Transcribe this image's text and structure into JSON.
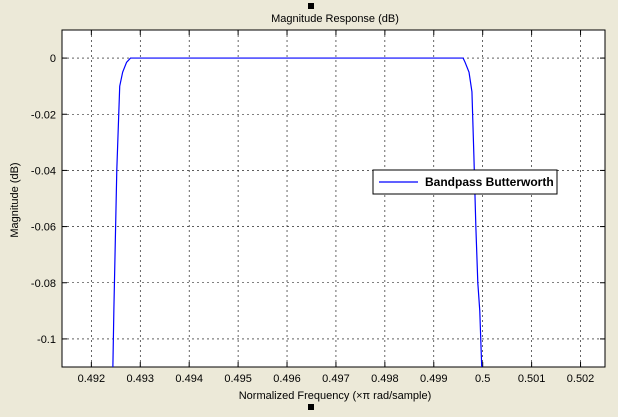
{
  "chart_data": {
    "type": "line",
    "title": "Magnitude Response (dB)",
    "xlabel": "Normalized Frequency (×π rad/sample)",
    "ylabel": "Magnitude (dB)",
    "xlim": [
      0.4914,
      0.5025
    ],
    "ylim": [
      -0.11,
      0.01
    ],
    "xticks": [
      0.492,
      0.493,
      0.494,
      0.495,
      0.496,
      0.497,
      0.498,
      0.499,
      0.5,
      0.501,
      0.502
    ],
    "xtick_labels": [
      "0.492",
      "0.493",
      "0.494",
      "0.495",
      "0.496",
      "0.497",
      "0.498",
      "0.499",
      "0.5",
      "0.501",
      "0.502"
    ],
    "yticks": [
      0,
      -0.02,
      -0.04,
      -0.06,
      -0.08,
      -0.1
    ],
    "ytick_labels": [
      "0",
      "-0.02",
      "-0.04",
      "-0.06",
      "-0.08",
      "-0.1"
    ],
    "grid": true,
    "legend_position": "right",
    "series": [
      {
        "name": "Bandpass Butterworth",
        "color": "#0000ff",
        "x": [
          0.49244,
          0.49246,
          0.49252,
          0.49258,
          0.49264,
          0.49272,
          0.4928,
          0.4929,
          0.499,
          0.4996,
          0.49964,
          0.49972,
          0.49978,
          0.49982,
          0.49986,
          0.4999,
          0.49994,
          0.49998
        ],
        "y": [
          -0.11,
          -0.09,
          -0.04,
          -0.01,
          -0.005,
          -0.0015,
          0.0,
          0.0,
          0.0,
          0.0,
          -0.0015,
          -0.005,
          -0.012,
          -0.035,
          -0.06,
          -0.08,
          -0.09,
          -0.11
        ]
      }
    ]
  }
}
